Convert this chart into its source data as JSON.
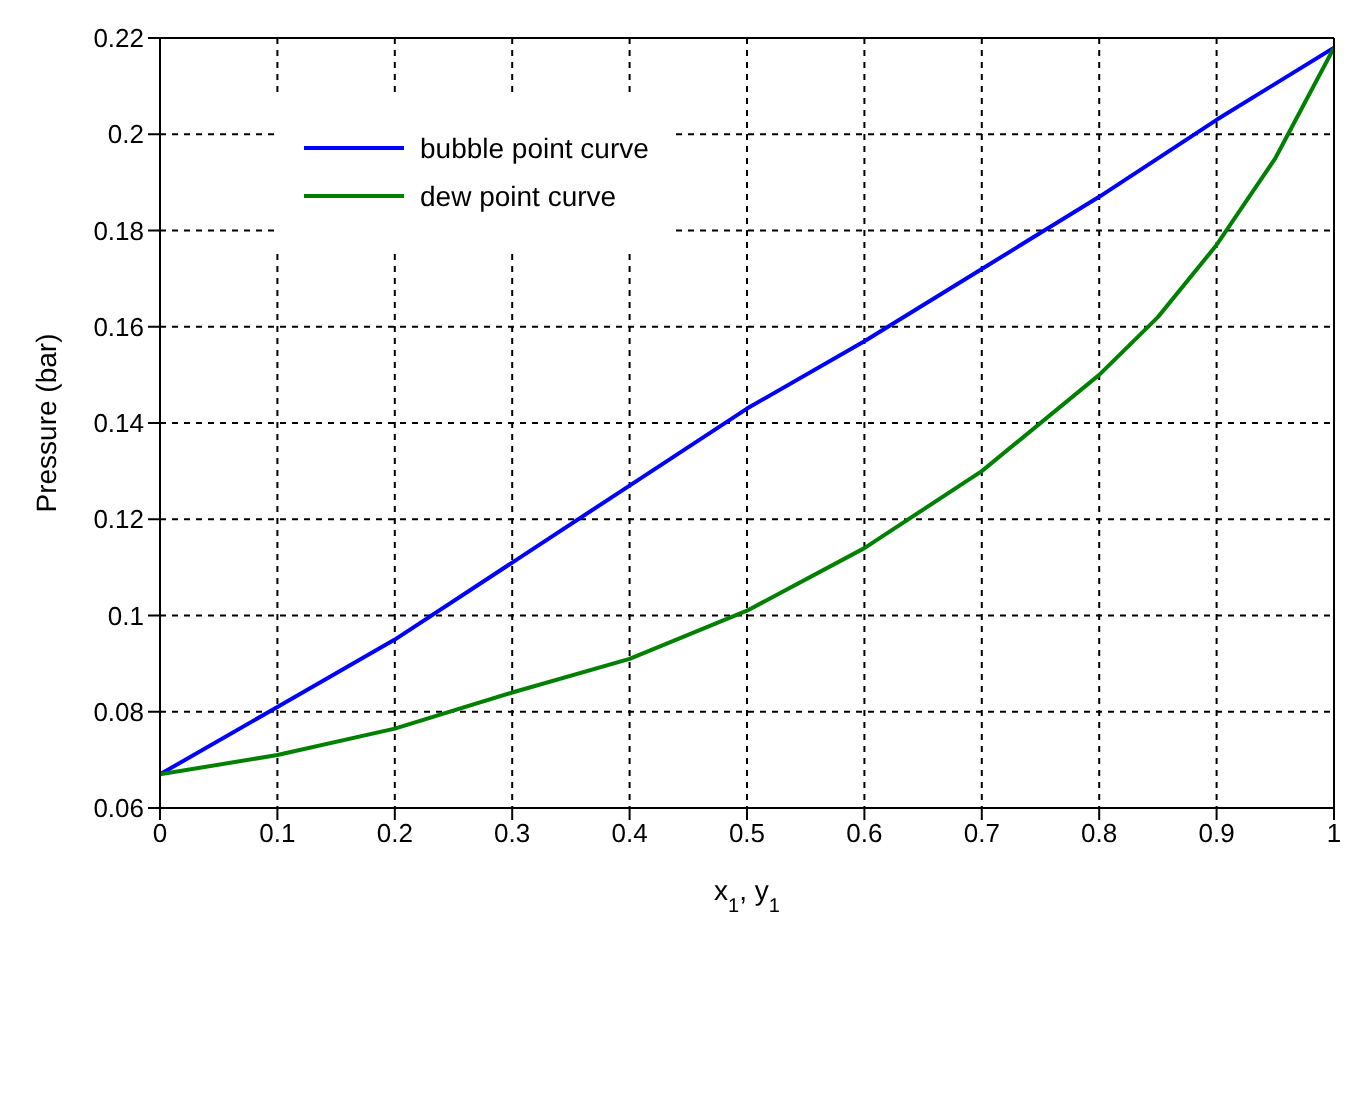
{
  "chart_data": {
    "type": "line",
    "xlabel": "x$_{1}$, y$_{1}$",
    "ylabel": "Pressure (bar)",
    "xlim": [
      0,
      1
    ],
    "ylim": [
      0.06,
      0.22
    ],
    "xticks": [
      0,
      0.1,
      0.2,
      0.3,
      0.4,
      0.5,
      0.6,
      0.7,
      0.8,
      0.9,
      1
    ],
    "yticks": [
      0.06,
      0.08,
      0.1,
      0.12,
      0.14,
      0.16,
      0.18,
      0.2,
      0.22
    ],
    "grid": true,
    "legend": "top left",
    "line_style": "solid",
    "marker": "none",
    "series": [
      {
        "name": "bubble point curve",
        "color": "#0000ff",
        "x": [
          0,
          0.1,
          0.2,
          0.3,
          0.4,
          0.5,
          0.6,
          0.7,
          0.8,
          0.9,
          1
        ],
        "values": [
          0.067,
          0.081,
          0.095,
          0.111,
          0.127,
          0.143,
          0.157,
          0.172,
          0.187,
          0.203,
          0.218
        ]
      },
      {
        "name": "dew point curve",
        "color": "#008000",
        "x": [
          0,
          0.1,
          0.2,
          0.3,
          0.4,
          0.5,
          0.6,
          0.7,
          0.8,
          0.85,
          0.9,
          0.95,
          1
        ],
        "values": [
          0.067,
          0.071,
          0.0765,
          0.084,
          0.091,
          0.101,
          0.114,
          0.13,
          0.15,
          0.162,
          0.177,
          0.195,
          0.218
        ]
      }
    ]
  }
}
